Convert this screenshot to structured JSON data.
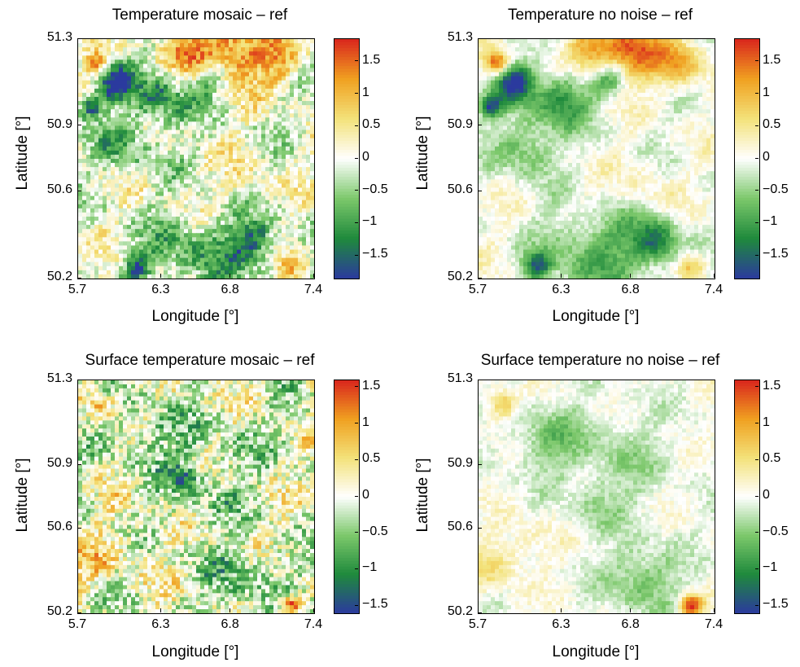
{
  "chart_data": [
    {
      "type": "heatmap",
      "title": "Temperature mosaic – ref",
      "xlabel": "Longitude [°]",
      "ylabel": "Latitude [°]",
      "x_ticks": [
        "5.7",
        "6.3",
        "6.8",
        "7.4"
      ],
      "y_ticks": [
        "51.3",
        "50.9",
        "50.6",
        "50.2"
      ],
      "xlim": [
        5.7,
        7.4
      ],
      "ylim": [
        50.2,
        51.3
      ],
      "colorbar": {
        "ticks": [
          "1.5",
          "1",
          "0.5",
          "0",
          "−0.5",
          "−1",
          "−1.5"
        ],
        "range": [
          -1.85,
          1.85
        ]
      },
      "pattern": "strong"
    },
    {
      "type": "heatmap",
      "title": "Temperature no noise – ref",
      "xlabel": "Longitude [°]",
      "ylabel": "Latitude [°]",
      "x_ticks": [
        "5.7",
        "6.3",
        "6.8",
        "7.4"
      ],
      "y_ticks": [
        "51.3",
        "50.9",
        "50.6",
        "50.2"
      ],
      "xlim": [
        5.7,
        7.4
      ],
      "ylim": [
        50.2,
        51.3
      ],
      "colorbar": {
        "ticks": [
          "1.5",
          "1",
          "0.5",
          "0",
          "−0.5",
          "−1",
          "−1.5"
        ],
        "range": [
          -1.85,
          1.85
        ]
      },
      "pattern": "strong-smooth"
    },
    {
      "type": "heatmap",
      "title": "Surface temperature mosaic – ref",
      "xlabel": "Longitude [°]",
      "ylabel": "Latitude [°]",
      "x_ticks": [
        "5.7",
        "6.3",
        "6.8",
        "7.4"
      ],
      "y_ticks": [
        "51.3",
        "50.9",
        "50.6",
        "50.2"
      ],
      "xlim": [
        5.7,
        7.4
      ],
      "ylim": [
        50.2,
        51.3
      ],
      "colorbar": {
        "ticks": [
          "1.5",
          "1",
          "0.5",
          "0",
          "−0.5",
          "−1",
          "−1.5"
        ],
        "range": [
          -1.6,
          1.6
        ]
      },
      "pattern": "surface-noisy"
    },
    {
      "type": "heatmap",
      "title": "Surface temperature no noise – ref",
      "xlabel": "Longitude [°]",
      "ylabel": "Latitude [°]",
      "x_ticks": [
        "5.7",
        "6.3",
        "6.8",
        "7.4"
      ],
      "y_ticks": [
        "51.3",
        "50.9",
        "50.6",
        "50.2"
      ],
      "xlim": [
        5.7,
        7.4
      ],
      "ylim": [
        50.2,
        51.3
      ],
      "colorbar": {
        "ticks": [
          "1.5",
          "1",
          "0.5",
          "0",
          "−0.5",
          "−1",
          "−1.5"
        ],
        "range": [
          -1.6,
          1.6
        ]
      },
      "pattern": "surface-smooth"
    }
  ],
  "colormap": [
    "#2b3a9e",
    "#1f8a3c",
    "#7cc86b",
    "#ffffff",
    "#f3e27a",
    "#f0a020",
    "#d9251d"
  ]
}
